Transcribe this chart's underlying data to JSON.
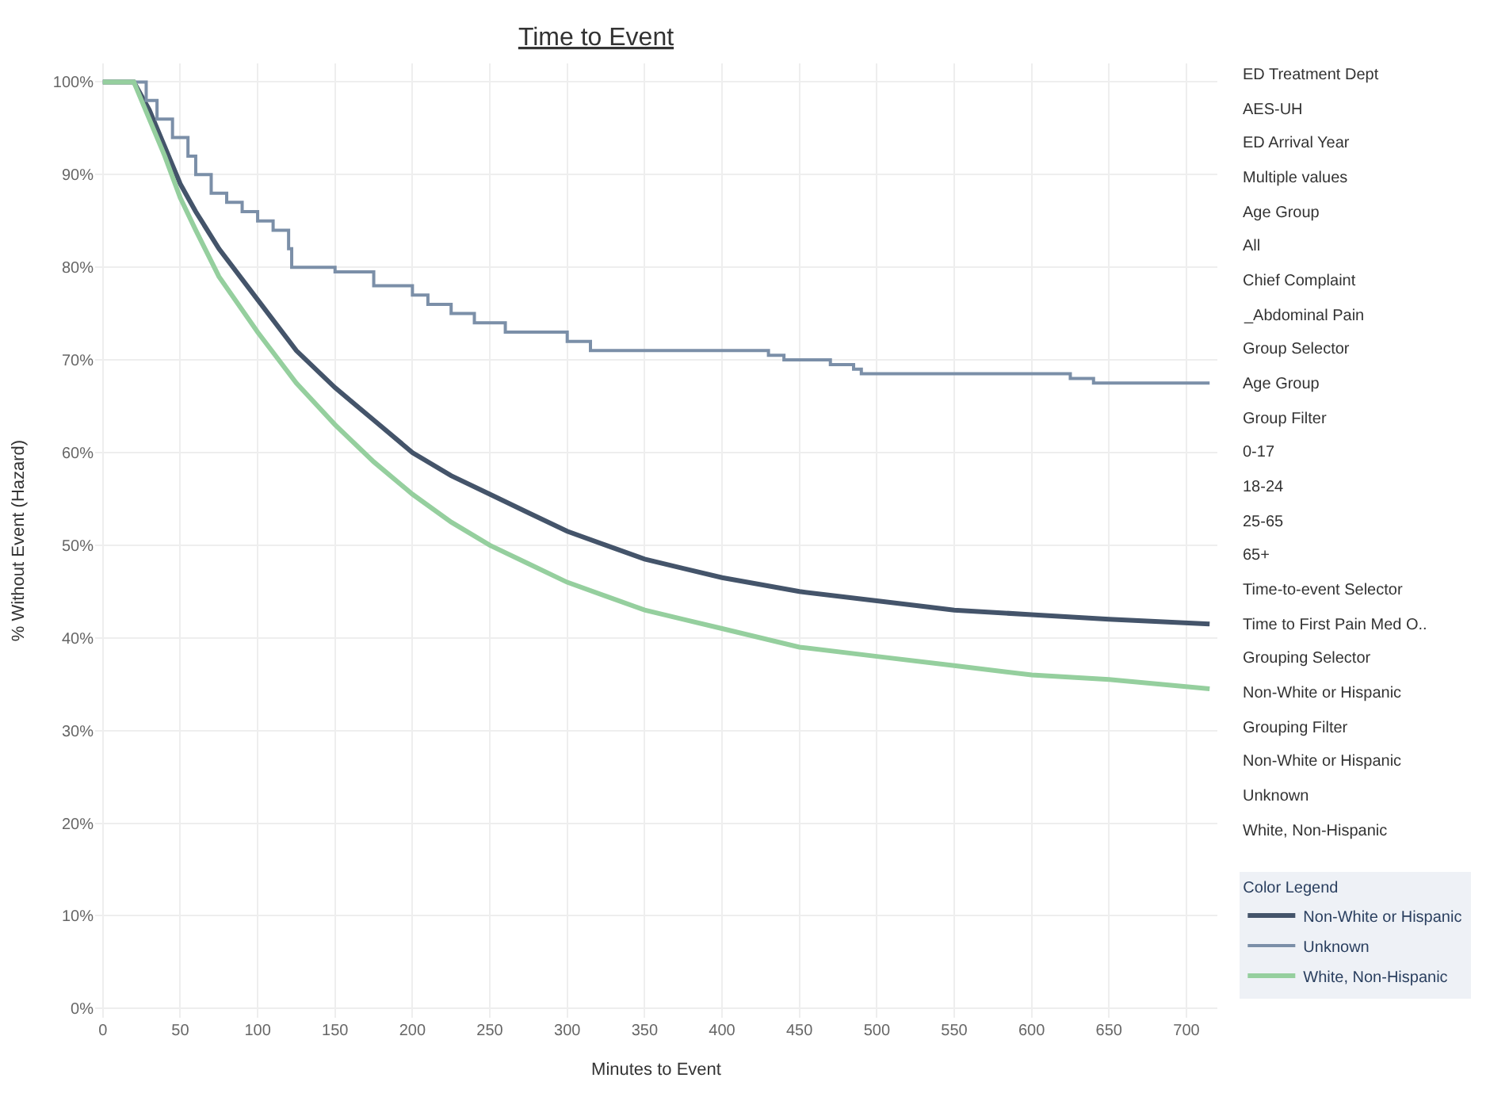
{
  "chart_data": {
    "type": "line",
    "title": "Time to Event",
    "xlabel": "Minutes to Event",
    "ylabel": "% Without Event (Hazard)",
    "legend_title": "Color Legend",
    "legend": "right",
    "grid": true,
    "xlim": [
      -5,
      720
    ],
    "xticks": [
      0,
      50,
      100,
      150,
      200,
      250,
      300,
      350,
      400,
      450,
      500,
      550,
      600,
      650,
      700
    ],
    "ylim": [
      -1,
      102
    ],
    "yticks": [
      {
        "value": 0,
        "label": "0%"
      },
      {
        "value": 10,
        "label": "10%"
      },
      {
        "value": 20,
        "label": "20%"
      },
      {
        "value": 30,
        "label": "30%"
      },
      {
        "value": 40,
        "label": "40%"
      },
      {
        "value": 50,
        "label": "50%"
      },
      {
        "value": 60,
        "label": "60%"
      },
      {
        "value": 70,
        "label": "70%"
      },
      {
        "value": 80,
        "label": "80%"
      },
      {
        "value": 90,
        "label": "90%"
      },
      {
        "value": 100,
        "label": "100%"
      }
    ],
    "series": [
      {
        "name": "Non-White or Hispanic",
        "color": "#44546a",
        "x": [
          0,
          20,
          30,
          40,
          50,
          60,
          75,
          100,
          125,
          150,
          175,
          200,
          225,
          250,
          275,
          300,
          325,
          350,
          375,
          400,
          450,
          500,
          550,
          600,
          650,
          715
        ],
        "values": [
          100,
          100,
          97,
          93,
          89,
          86,
          82,
          76.5,
          71,
          67,
          63.5,
          60,
          57.5,
          55.5,
          53.5,
          51.5,
          50,
          48.5,
          47.5,
          46.5,
          45,
          44,
          43,
          42.5,
          42,
          41.5
        ]
      },
      {
        "name": "Unknown",
        "type": "step",
        "color": "#7b8fa8",
        "x": [
          0,
          25,
          28,
          35,
          45,
          55,
          60,
          70,
          80,
          90,
          100,
          110,
          120,
          122,
          150,
          175,
          200,
          210,
          225,
          240,
          260,
          300,
          315,
          430,
          440,
          470,
          485,
          490,
          625,
          640,
          715
        ],
        "values": [
          100,
          100,
          98,
          96,
          94,
          92,
          90,
          88,
          87,
          86,
          85,
          84,
          82,
          80,
          79.5,
          78,
          77,
          76,
          75,
          74,
          73,
          72,
          71,
          70.5,
          70,
          69.5,
          69,
          68.5,
          68,
          67.5,
          67.5
        ]
      },
      {
        "name": "White, Non-Hispanic",
        "color": "#95cf9e",
        "x": [
          0,
          20,
          30,
          40,
          50,
          60,
          75,
          100,
          125,
          150,
          175,
          200,
          225,
          250,
          275,
          300,
          325,
          350,
          375,
          400,
          450,
          500,
          550,
          600,
          650,
          715
        ],
        "values": [
          100,
          100,
          96,
          92,
          87.5,
          84,
          79,
          73,
          67.5,
          63,
          59,
          55.5,
          52.5,
          50,
          48,
          46,
          44.5,
          43,
          42,
          41,
          39,
          38,
          37,
          36,
          35.5,
          34.5
        ]
      }
    ],
    "annotations": [
      "ED Treatment Dept",
      "AES-UH",
      "ED Arrival Year",
      "Multiple values",
      "Age Group",
      "All",
      "Chief Complaint",
      "_Abdominal Pain",
      "Group Selector",
      "Age Group",
      "Group Filter",
      "0-17",
      "18-24",
      "25-65",
      "65+",
      "Time-to-event Selector",
      "Time to First Pain Med O..",
      "Grouping Selector",
      "Non-White or Hispanic",
      "Grouping Filter",
      "Non-White or Hispanic",
      "Unknown",
      "White, Non-Hispanic"
    ]
  }
}
